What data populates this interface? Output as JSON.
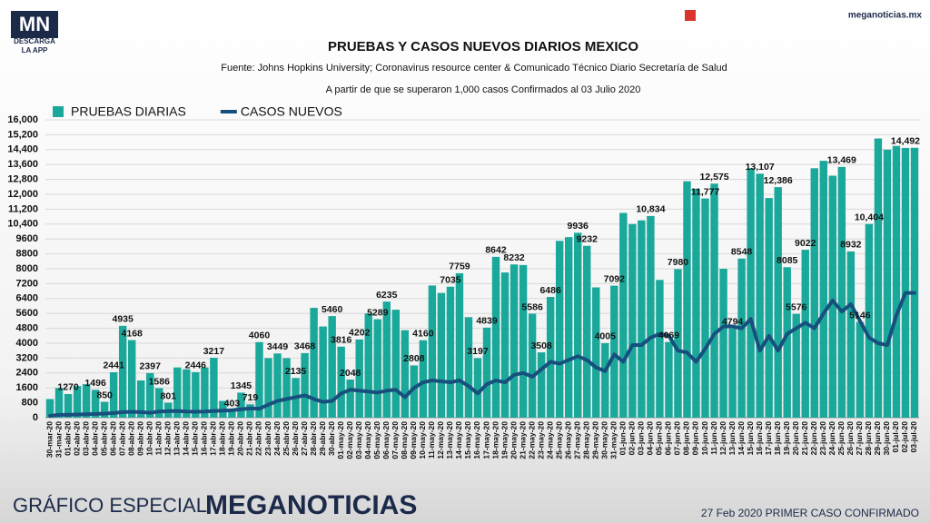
{
  "branding": {
    "logo": "MN",
    "logo_sub": "DESCARGA",
    "logo_sub2": "LA APP",
    "site": "meganoticias.mx",
    "footer_left": "GRÁFICO ESPECIAL",
    "footer_brand": "MEGANOTICIAS",
    "footer_right": "27 Feb 2020 PRIMER CASO CONFIRMADO"
  },
  "chart_data": {
    "type": "bar",
    "title": "PRUEBAS Y CASOS NUEVOS DIARIOS MEXICO",
    "subtitle": "Fuente: Johns Hopkins University; Coronavirus resource center & Comunicado Técnico Diario Secretaría de Salud",
    "note": "A partir de que se superaron 1,000 casos Confirmados al 03 Julio 2020",
    "categories": [
      "30-mar-20",
      "31-mar-20",
      "01-abr-20",
      "02-abr-20",
      "03-abr-20",
      "04-abr-20",
      "05-abr-20",
      "06-abr-20",
      "07-abr-20",
      "08-abr-20",
      "09-abr-20",
      "10-abr-20",
      "11-abr-20",
      "12-abr-20",
      "13-abr-20",
      "14-abr-20",
      "15-abr-20",
      "16-abr-20",
      "17-abr-20",
      "18-abr-20",
      "19-abr-20",
      "20-abr-20",
      "21-abr-20",
      "22-abr-20",
      "23-abr-20",
      "24-abr-20",
      "25-abr-20",
      "26-abr-20",
      "27-abr-20",
      "28-abr-20",
      "29-abr-20",
      "30-abr-20",
      "01-may-20",
      "02-may-20",
      "03-may-20",
      "04-may-20",
      "05-may-20",
      "06-may-20",
      "07-may-20",
      "08-may-20",
      "09-may-20",
      "10-may-20",
      "11-may-20",
      "12-may-20",
      "13-may-20",
      "14-may-20",
      "15-may-20",
      "16-may-20",
      "17-may-20",
      "18-may-20",
      "19-may-20",
      "20-may-20",
      "21-may-20",
      "22-may-20",
      "23-may-20",
      "24-may-20",
      "25-may-20",
      "26-may-20",
      "27-may-20",
      "28-may-20",
      "29-may-20",
      "30-may-20",
      "31-may-20",
      "01-jun-20",
      "02-jun-20",
      "03-jun-20",
      "04-jun-20",
      "05-jun-20",
      "06-jun-20",
      "07-jun-20",
      "08-jun-20",
      "09-jun-20",
      "10-jun-20",
      "11-jun-20",
      "12-jun-20",
      "13-jun-20",
      "14-jun-20",
      "15-jun-20",
      "16-jun-20",
      "17-jun-20",
      "18-jun-20",
      "19-jun-20",
      "20-jun-20",
      "21-jun-20",
      "22-jun-20",
      "23-jun-20",
      "24-jun-20",
      "25-jun-20",
      "26-jun-20",
      "27-jun-20",
      "28-jun-20",
      "29-jun-20",
      "30-jun-20",
      "01-jul-20",
      "02-jul-20",
      "03-jul-20"
    ],
    "series": [
      {
        "name": "PRUEBAS DIARIAS",
        "type": "bar",
        "color": "#1aa89b",
        "values": [
          1000,
          1600,
          1270,
          1700,
          1800,
          1496,
          850,
          2441,
          4935,
          4168,
          2000,
          2397,
          1586,
          801,
          2700,
          2600,
          2446,
          2700,
          3217,
          900,
          403,
          1345,
          719,
          4060,
          3200,
          3449,
          3200,
          2135,
          3468,
          5900,
          4900,
          5460,
          3816,
          2048,
          4202,
          5600,
          5289,
          6235,
          5800,
          4700,
          2808,
          4160,
          7100,
          6700,
          7035,
          7759,
          5400,
          3197,
          4839,
          8642,
          7800,
          8232,
          8200,
          5586,
          3508,
          6486,
          9500,
          9700,
          9936,
          9232,
          7000,
          4005,
          7092,
          11000,
          10400,
          10600,
          10834,
          7400,
          4069,
          7980,
          12700,
          12300,
          11777,
          12575,
          8000,
          4794,
          8548,
          13400,
          13107,
          11800,
          12386,
          8085,
          5576,
          9022,
          13400,
          13800,
          13000,
          13469,
          8932,
          5146,
          10404,
          15000,
          14400,
          14600,
          14492,
          14500
        ],
        "value_labels": [
          null,
          null,
          "1270",
          null,
          null,
          "1496",
          "850",
          "2441",
          "4935",
          "4168",
          null,
          "2397",
          "1586",
          "801",
          null,
          null,
          "2446",
          null,
          "3217",
          null,
          "403",
          "1345",
          "719",
          "4060",
          null,
          "3449",
          null,
          "2135",
          "3468",
          null,
          null,
          "5460",
          "3816",
          "2048",
          "4202",
          null,
          "5289",
          "6235",
          null,
          null,
          "2808",
          "4160",
          null,
          null,
          "7035",
          "7759",
          null,
          "3197",
          "4839",
          "8642",
          null,
          "8232",
          null,
          "5586",
          "3508",
          "6486",
          null,
          null,
          "9936",
          "9232",
          null,
          "4005",
          "7092",
          null,
          null,
          null,
          "10,834",
          null,
          "4069",
          "7980",
          null,
          null,
          "11,777",
          "12,575",
          null,
          "4794",
          "8548",
          null,
          "13,107",
          null,
          "12,386",
          "8085",
          "5576",
          "9022",
          null,
          null,
          null,
          "13,469",
          "8932",
          "5146",
          "10,404",
          null,
          null,
          null,
          "14,492",
          null
        ]
      },
      {
        "name": "CASOS NUEVOS",
        "type": "line",
        "color": "#17507d",
        "values": [
          100,
          150,
          150,
          170,
          180,
          200,
          220,
          250,
          300,
          320,
          300,
          260,
          330,
          350,
          360,
          330,
          320,
          330,
          360,
          380,
          400,
          450,
          500,
          480,
          700,
          900,
          1000,
          1100,
          1200,
          1000,
          850,
          900,
          1300,
          1500,
          1450,
          1400,
          1350,
          1450,
          1500,
          1100,
          1600,
          1900,
          2000,
          1950,
          1900,
          2000,
          1700,
          1300,
          1800,
          2000,
          1900,
          2300,
          2400,
          2200,
          2600,
          3000,
          2900,
          3100,
          3300,
          3100,
          2700,
          2500,
          3400,
          3000,
          3900,
          3900,
          4300,
          4500,
          4400,
          3600,
          3500,
          3000,
          3700,
          4500,
          4900,
          4900,
          4800,
          5300,
          3600,
          4400,
          3600,
          4500,
          4800,
          5100,
          4800,
          5600,
          6300,
          5700,
          6100,
          5200,
          4300,
          4000,
          3900,
          5500,
          6700,
          6700
        ]
      }
    ],
    "ylim": [
      0,
      16000
    ],
    "yticks": [
      0,
      800,
      1600,
      2400,
      3200,
      4000,
      4800,
      5600,
      6400,
      7200,
      8000,
      8800,
      9600,
      {
        "value": 10400,
        "label": "10,400"
      },
      {
        "value": 11200,
        "label": "11,200"
      },
      {
        "value": 12000,
        "label": "12,000"
      },
      {
        "value": 12800,
        "label": "12,800"
      },
      {
        "value": 13600,
        "label": "13,600"
      },
      {
        "value": 14400,
        "label": "14,400"
      },
      {
        "value": 15200,
        "label": "15,200"
      },
      {
        "value": 16000,
        "label": "16,000"
      }
    ],
    "grid": true,
    "legend": "top-left"
  }
}
